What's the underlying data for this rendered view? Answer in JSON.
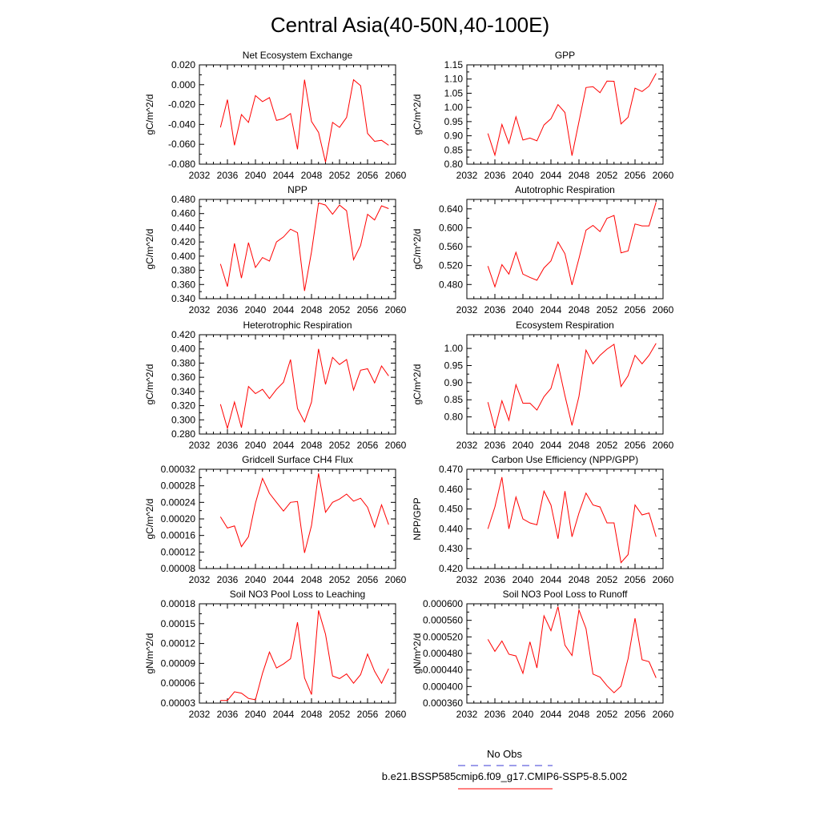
{
  "title": "Central Asia(40-50N,40-100E)",
  "legend": {
    "obs_label": "No Obs",
    "obs_color": "#3b3bd6",
    "model_label": "b.e21.BSSP585cmip6.f09_g17.CMIP6-SSP5-8.5.002",
    "model_color": "#ff0000"
  },
  "chart_data": [
    {
      "type": "line",
      "title": "Net Ecosystem Exchange",
      "ylabel": "gC/m^2/d",
      "xlim": [
        2032,
        2060
      ],
      "xticks": [
        "2032",
        "2036",
        "2040",
        "2044",
        "2048",
        "2052",
        "2056",
        "2060"
      ],
      "ylim": [
        -0.08,
        0.02
      ],
      "yticks": [
        "0.020",
        "0.000",
        "-0.020",
        "-0.040",
        "-0.060",
        "-0.080"
      ],
      "x": [
        2035,
        2036,
        2037,
        2038,
        2039,
        2040,
        2041,
        2042,
        2043,
        2044,
        2045,
        2046,
        2047,
        2048,
        2049,
        2050,
        2051,
        2052,
        2053,
        2054,
        2055,
        2056,
        2057,
        2058,
        2059
      ],
      "values": [
        -0.043,
        -0.015,
        -0.061,
        -0.03,
        -0.038,
        -0.011,
        -0.017,
        -0.013,
        -0.036,
        -0.034,
        -0.029,
        -0.065,
        0.005,
        -0.037,
        -0.048,
        -0.078,
        -0.038,
        -0.043,
        -0.033,
        0.005,
        -0.001,
        -0.049,
        -0.057,
        -0.056,
        -0.061
      ]
    },
    {
      "type": "line",
      "title": "GPP",
      "ylabel": "gC/m^2/d",
      "xlim": [
        2032,
        2060
      ],
      "xticks": [
        "2032",
        "2036",
        "2040",
        "2044",
        "2048",
        "2052",
        "2056",
        "2060"
      ],
      "ylim": [
        0.8,
        1.15
      ],
      "yticks": [
        "1.15",
        "1.10",
        "1.05",
        "1.00",
        "0.95",
        "0.90",
        "0.85",
        "0.80"
      ],
      "x": [
        2035,
        2036,
        2037,
        2038,
        2039,
        2040,
        2041,
        2042,
        2043,
        2044,
        2045,
        2046,
        2047,
        2048,
        2049,
        2050,
        2051,
        2052,
        2053,
        2054,
        2055,
        2056,
        2057,
        2058,
        2059
      ],
      "values": [
        0.908,
        0.832,
        0.94,
        0.873,
        0.967,
        0.885,
        0.892,
        0.882,
        0.938,
        0.96,
        1.01,
        0.982,
        0.83,
        0.95,
        1.07,
        1.073,
        1.052,
        1.093,
        1.092,
        0.942,
        0.965,
        1.068,
        1.056,
        1.075,
        1.12
      ]
    },
    {
      "type": "line",
      "title": "NPP",
      "ylabel": "gC/m^2/d",
      "xlim": [
        2032,
        2060
      ],
      "xticks": [
        "2032",
        "2036",
        "2040",
        "2044",
        "2048",
        "2052",
        "2056",
        "2060"
      ],
      "ylim": [
        0.34,
        0.48
      ],
      "yticks": [
        "0.480",
        "0.460",
        "0.440",
        "0.420",
        "0.400",
        "0.380",
        "0.360",
        "0.340"
      ],
      "x": [
        2035,
        2036,
        2037,
        2038,
        2039,
        2040,
        2041,
        2042,
        2043,
        2044,
        2045,
        2046,
        2047,
        2048,
        2049,
        2050,
        2051,
        2052,
        2053,
        2054,
        2055,
        2056,
        2057,
        2058,
        2059
      ],
      "values": [
        0.389,
        0.357,
        0.418,
        0.369,
        0.419,
        0.384,
        0.398,
        0.393,
        0.42,
        0.427,
        0.438,
        0.433,
        0.351,
        0.406,
        0.475,
        0.472,
        0.459,
        0.472,
        0.464,
        0.395,
        0.415,
        0.459,
        0.451,
        0.471,
        0.467
      ]
    },
    {
      "type": "line",
      "title": "Autotrophic Respiration",
      "ylabel": "gC/m^2/d",
      "xlim": [
        2032,
        2060
      ],
      "xticks": [
        "2032",
        "2036",
        "2040",
        "2044",
        "2048",
        "2052",
        "2056",
        "2060"
      ],
      "ylim": [
        0.45,
        0.66
      ],
      "yticks": [
        "0.640",
        "0.600",
        "0.560",
        "0.520",
        "0.480"
      ],
      "ytick_values": [
        0.64,
        0.6,
        0.56,
        0.52,
        0.48
      ],
      "x": [
        2035,
        2036,
        2037,
        2038,
        2039,
        2040,
        2041,
        2042,
        2043,
        2044,
        2045,
        2046,
        2047,
        2048,
        2049,
        2050,
        2051,
        2052,
        2053,
        2054,
        2055,
        2056,
        2057,
        2058,
        2059
      ],
      "values": [
        0.519,
        0.475,
        0.522,
        0.502,
        0.548,
        0.502,
        0.495,
        0.489,
        0.515,
        0.53,
        0.57,
        0.545,
        0.479,
        0.535,
        0.595,
        0.605,
        0.592,
        0.62,
        0.626,
        0.547,
        0.551,
        0.608,
        0.604,
        0.604,
        0.654
      ]
    },
    {
      "type": "line",
      "title": "Heterotrophic Respiration",
      "ylabel": "gC/m^2/d",
      "xlim": [
        2032,
        2060
      ],
      "xticks": [
        "2032",
        "2036",
        "2040",
        "2044",
        "2048",
        "2052",
        "2056",
        "2060"
      ],
      "ylim": [
        0.28,
        0.42
      ],
      "yticks": [
        "0.420",
        "0.400",
        "0.380",
        "0.360",
        "0.340",
        "0.320",
        "0.300",
        "0.280"
      ],
      "x": [
        2035,
        2036,
        2037,
        2038,
        2039,
        2040,
        2041,
        2042,
        2043,
        2044,
        2045,
        2046,
        2047,
        2048,
        2049,
        2050,
        2051,
        2052,
        2053,
        2054,
        2055,
        2056,
        2057,
        2058,
        2059
      ],
      "values": [
        0.322,
        0.288,
        0.325,
        0.289,
        0.347,
        0.337,
        0.343,
        0.33,
        0.343,
        0.353,
        0.385,
        0.316,
        0.297,
        0.325,
        0.4,
        0.35,
        0.388,
        0.378,
        0.385,
        0.342,
        0.37,
        0.372,
        0.352,
        0.376,
        0.362
      ]
    },
    {
      "type": "line",
      "title": "Ecosystem Respiration",
      "ylabel": "gC/m^2/d",
      "xlim": [
        2032,
        2060
      ],
      "xticks": [
        "2032",
        "2036",
        "2040",
        "2044",
        "2048",
        "2052",
        "2056",
        "2060"
      ],
      "ylim": [
        0.75,
        1.04
      ],
      "yticks": [
        "1.00",
        "0.95",
        "0.90",
        "0.85",
        "0.80"
      ],
      "ytick_values": [
        1.0,
        0.95,
        0.9,
        0.85,
        0.8
      ],
      "x": [
        2035,
        2036,
        2037,
        2038,
        2039,
        2040,
        2041,
        2042,
        2043,
        2044,
        2045,
        2046,
        2047,
        2048,
        2049,
        2050,
        2051,
        2052,
        2053,
        2054,
        2055,
        2056,
        2057,
        2058,
        2059
      ],
      "values": [
        0.843,
        0.765,
        0.847,
        0.79,
        0.894,
        0.84,
        0.84,
        0.82,
        0.859,
        0.883,
        0.955,
        0.862,
        0.775,
        0.86,
        0.995,
        0.955,
        0.98,
        0.998,
        1.012,
        0.889,
        0.92,
        0.98,
        0.955,
        0.98,
        1.015
      ]
    },
    {
      "type": "line",
      "title": "Gridcell Surface CH4 Flux",
      "ylabel": "gC/m^2/d",
      "xlim": [
        2032,
        2060
      ],
      "xticks": [
        "2032",
        "2036",
        "2040",
        "2044",
        "2048",
        "2052",
        "2056",
        "2060"
      ],
      "ylim": [
        8e-05,
        0.00032
      ],
      "yticks": [
        "0.00032",
        "0.00028",
        "0.00024",
        "0.00020",
        "0.00016",
        "0.00012",
        "0.00008"
      ],
      "x": [
        2035,
        2036,
        2037,
        2038,
        2039,
        2040,
        2041,
        2042,
        2043,
        2044,
        2045,
        2046,
        2047,
        2048,
        2049,
        2050,
        2051,
        2052,
        2053,
        2054,
        2055,
        2056,
        2057,
        2058,
        2059
      ],
      "values": [
        0.000205,
        0.000178,
        0.000183,
        0.000133,
        0.000157,
        0.000238,
        0.000298,
        0.000262,
        0.00024,
        0.000219,
        0.00024,
        0.000242,
        0.000118,
        0.000184,
        0.00031,
        0.000216,
        0.00024,
        0.000248,
        0.00026,
        0.000243,
        0.00025,
        0.000228,
        0.00018,
        0.000234,
        0.000186
      ]
    },
    {
      "type": "line",
      "title": "Carbon Use Efficiency (NPP/GPP)",
      "ylabel": "NPP/GPP",
      "xlim": [
        2032,
        2060
      ],
      "xticks": [
        "2032",
        "2036",
        "2040",
        "2044",
        "2048",
        "2052",
        "2056",
        "2060"
      ],
      "ylim": [
        0.42,
        0.47
      ],
      "yticks": [
        "0.470",
        "0.460",
        "0.450",
        "0.440",
        "0.430",
        "0.420"
      ],
      "x": [
        2035,
        2036,
        2037,
        2038,
        2039,
        2040,
        2041,
        2042,
        2043,
        2044,
        2045,
        2046,
        2047,
        2048,
        2049,
        2050,
        2051,
        2052,
        2053,
        2054,
        2055,
        2056,
        2057,
        2058,
        2059
      ],
      "values": [
        0.44,
        0.451,
        0.466,
        0.44,
        0.456,
        0.445,
        0.443,
        0.442,
        0.459,
        0.452,
        0.435,
        0.459,
        0.436,
        0.448,
        0.458,
        0.452,
        0.451,
        0.443,
        0.443,
        0.423,
        0.427,
        0.452,
        0.447,
        0.448,
        0.436
      ]
    },
    {
      "type": "line",
      "title": "Soil NO3 Pool Loss to Leaching",
      "ylabel": "gN/m^2/d",
      "xlim": [
        2032,
        2060
      ],
      "xticks": [
        "2032",
        "2036",
        "2040",
        "2044",
        "2048",
        "2052",
        "2056",
        "2060"
      ],
      "ylim": [
        3e-05,
        0.00018
      ],
      "yticks": [
        "0.00018",
        "0.00015",
        "0.00012",
        "0.00009",
        "0.00006",
        "0.00003"
      ],
      "x": [
        2035,
        2036,
        2037,
        2038,
        2039,
        2040,
        2041,
        2042,
        2043,
        2044,
        2045,
        2046,
        2047,
        2048,
        2049,
        2050,
        2051,
        2052,
        2053,
        2054,
        2055,
        2056,
        2057,
        2058,
        2059
      ],
      "values": [
        3.4e-05,
        3.4e-05,
        4.7e-05,
        4.5e-05,
        3.7e-05,
        3.5e-05,
        7.5e-05,
        0.000107,
        8.3e-05,
        8.9e-05,
        9.7e-05,
        0.000152,
        6.8e-05,
        4.3e-05,
        0.00017,
        0.000134,
        7.1e-05,
        6.7e-05,
        7.4e-05,
        6e-05,
        7.3e-05,
        0.000104,
        7.8e-05,
        6e-05,
        8.2e-05
      ]
    },
    {
      "type": "line",
      "title": "Soil NO3 Pool Loss to Runoff",
      "ylabel": "gN/m^2/d",
      "xlim": [
        2032,
        2060
      ],
      "xticks": [
        "2032",
        "2036",
        "2040",
        "2044",
        "2048",
        "2052",
        "2056",
        "2060"
      ],
      "ylim": [
        0.00036,
        0.0006
      ],
      "yticks": [
        "0.000600",
        "0.000560",
        "0.000520",
        "0.000480",
        "0.000440",
        "0.000400",
        "0.000360"
      ],
      "x": [
        2035,
        2036,
        2037,
        2038,
        2039,
        2040,
        2041,
        2042,
        2043,
        2044,
        2045,
        2046,
        2047,
        2048,
        2049,
        2050,
        2051,
        2052,
        2053,
        2054,
        2055,
        2056,
        2057,
        2058,
        2059
      ],
      "values": [
        0.000514,
        0.000485,
        0.00051,
        0.000478,
        0.000474,
        0.000432,
        0.000508,
        0.000445,
        0.000571,
        0.000535,
        0.000593,
        0.0005,
        0.000475,
        0.000585,
        0.00054,
        0.00043,
        0.000423,
        0.000402,
        0.000385,
        0.000401,
        0.000467,
        0.000565,
        0.000465,
        0.00046,
        0.000421
      ]
    }
  ]
}
